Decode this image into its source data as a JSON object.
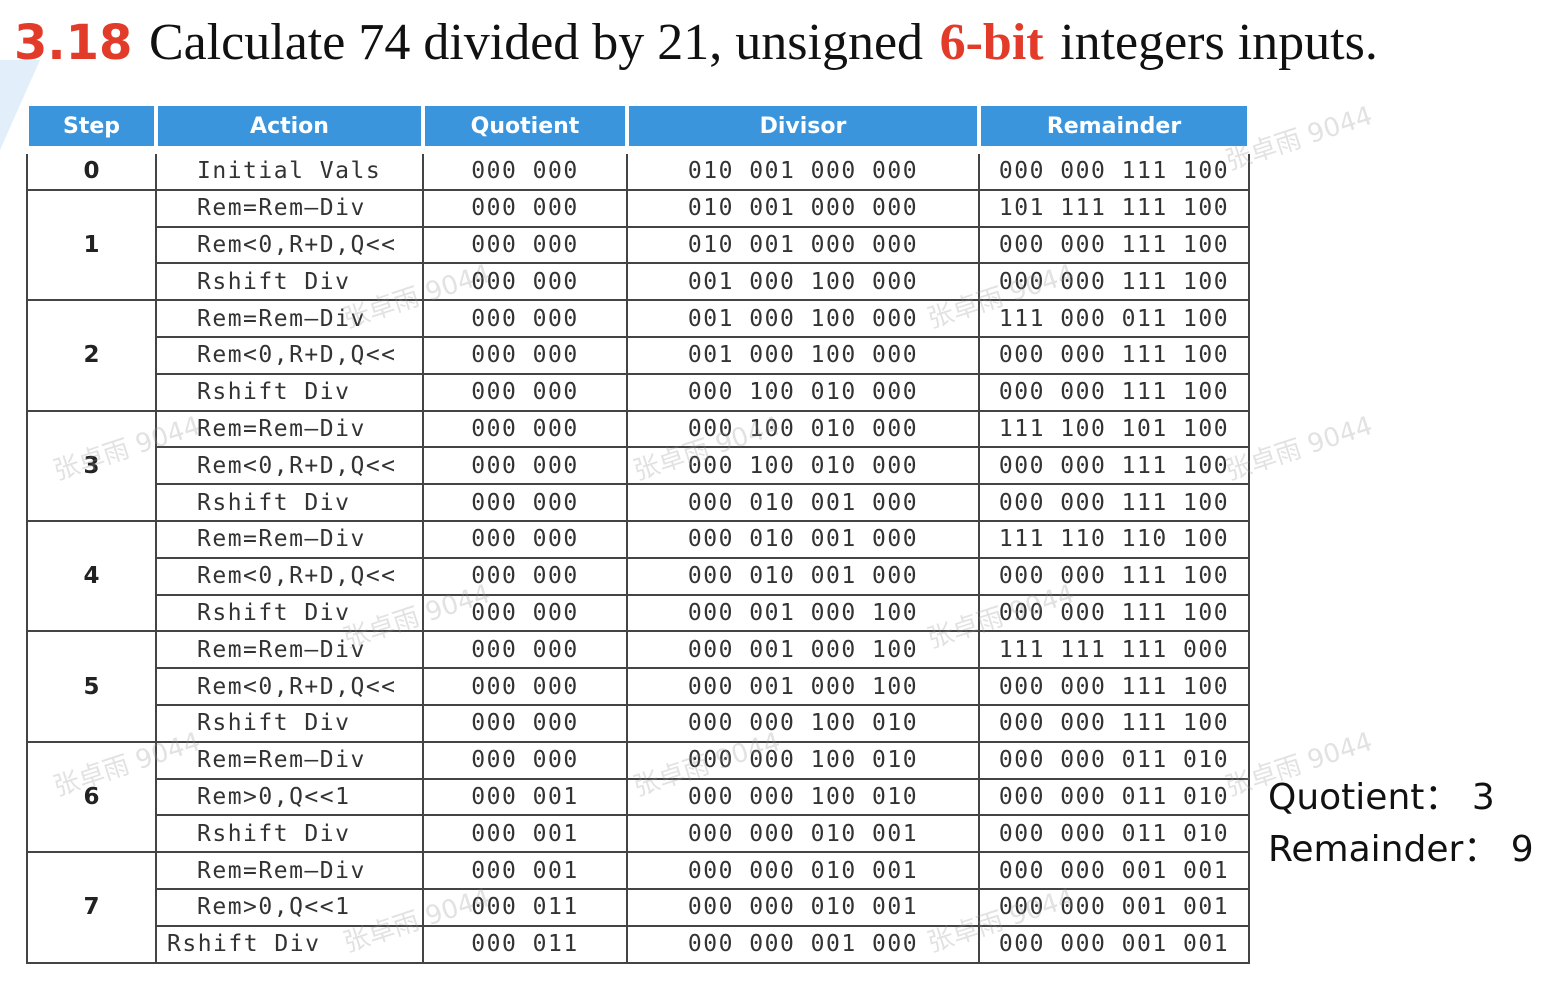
{
  "title": {
    "number": "3.18",
    "text_before": "Calculate 74 divided by 21, unsigned",
    "highlight": "6-bit",
    "text_after": "integers inputs."
  },
  "table": {
    "headers": [
      "Step",
      "Action",
      "Quotient",
      "Divisor",
      "Remainder"
    ],
    "groups": [
      {
        "step": "0",
        "rows": [
          {
            "action": "Initial Vals",
            "quotient": "000 000",
            "divisor": "010 001 000 000",
            "remainder": "000 000 111 100"
          }
        ]
      },
      {
        "step": "1",
        "rows": [
          {
            "action": "Rem=Rem–Div",
            "quotient": "000 000",
            "divisor": "010 001 000 000",
            "remainder": "101 111 111 100"
          },
          {
            "action": "Rem<0,R+D,Q<<",
            "quotient": "000 000",
            "divisor": "010 001 000 000",
            "remainder": "000 000 111 100"
          },
          {
            "action": "Rshift Div",
            "quotient": "000 000",
            "divisor": "001 000 100 000",
            "remainder": "000 000 111 100"
          }
        ]
      },
      {
        "step": "2",
        "rows": [
          {
            "action": "Rem=Rem–Div",
            "quotient": "000 000",
            "divisor": "001 000 100 000",
            "remainder": "111 000 011 100"
          },
          {
            "action": "Rem<0,R+D,Q<<",
            "quotient": "000 000",
            "divisor": "001 000 100 000",
            "remainder": "000 000 111 100"
          },
          {
            "action": "Rshift Div",
            "quotient": "000 000",
            "divisor": "000 100 010 000",
            "remainder": "000 000 111 100"
          }
        ]
      },
      {
        "step": "3",
        "rows": [
          {
            "action": "Rem=Rem–Div",
            "quotient": "000 000",
            "divisor": "000 100 010 000",
            "remainder": "111 100 101 100"
          },
          {
            "action": "Rem<0,R+D,Q<<",
            "quotient": "000 000",
            "divisor": "000 100 010 000",
            "remainder": "000 000 111 100"
          },
          {
            "action": "Rshift Div",
            "quotient": "000 000",
            "divisor": "000 010 001 000",
            "remainder": "000 000 111 100"
          }
        ]
      },
      {
        "step": "4",
        "rows": [
          {
            "action": "Rem=Rem–Div",
            "quotient": "000 000",
            "divisor": "000 010 001 000",
            "remainder": "111 110 110 100"
          },
          {
            "action": "Rem<0,R+D,Q<<",
            "quotient": "000 000",
            "divisor": "000 010 001 000",
            "remainder": "000 000 111 100"
          },
          {
            "action": "Rshift Div",
            "quotient": "000 000",
            "divisor": "000 001 000 100",
            "remainder": "000 000 111 100"
          }
        ]
      },
      {
        "step": "5",
        "rows": [
          {
            "action": "Rem=Rem–Div",
            "quotient": "000 000",
            "divisor": "000 001 000 100",
            "remainder": "111 111 111 000"
          },
          {
            "action": "Rem<0,R+D,Q<<",
            "quotient": "000 000",
            "divisor": "000 001 000 100",
            "remainder": "000 000 111 100"
          },
          {
            "action": "Rshift Div",
            "quotient": "000 000",
            "divisor": "000 000 100 010",
            "remainder": "000 000 111 100"
          }
        ]
      },
      {
        "step": "6",
        "rows": [
          {
            "action": "Rem=Rem–Div",
            "quotient": "000 000",
            "divisor": "000 000 100 010",
            "remainder": "000 000 011 010"
          },
          {
            "action": "Rem>0,Q<<1",
            "quotient": "000 001",
            "divisor": "000 000 100 010",
            "remainder": "000 000 011 010"
          },
          {
            "action": "Rshift Div",
            "quotient": "000 001",
            "divisor": "000 000 010 001",
            "remainder": "000 000 011 010"
          }
        ]
      },
      {
        "step": "7",
        "rows": [
          {
            "action": "Rem=Rem–Div",
            "quotient": "000 001",
            "divisor": "000 000 010 001",
            "remainder": "000 000 001 001"
          },
          {
            "action": "Rem>0,Q<<1",
            "quotient": "000 011",
            "divisor": "000 000 010 001",
            "remainder": "000 000 001 001"
          },
          {
            "action": "Rshift Div",
            "quotient": "000 011",
            "divisor": "000 000 001 000",
            "remainder": "000 000 001 001"
          }
        ]
      }
    ]
  },
  "result": {
    "quotient": "Quotient： 3",
    "remainder": "Remainder： 9"
  },
  "watermark": "张卓雨 9044"
}
